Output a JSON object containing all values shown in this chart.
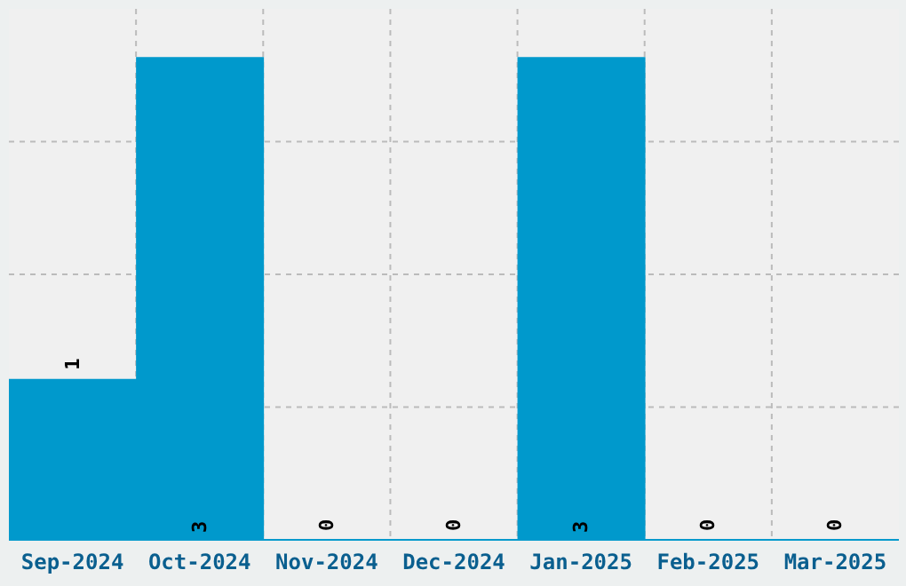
{
  "chart_data": {
    "type": "bar",
    "categories": [
      "Sep-2024",
      "Oct-2024",
      "Nov-2024",
      "Dec-2024",
      "Jan-2025",
      "Feb-2025",
      "Mar-2025"
    ],
    "values": [
      1,
      3,
      0,
      0,
      3,
      0,
      0
    ],
    "color": "#0099cc",
    "ylim": [
      0,
      3.3
    ],
    "grid": true,
    "data_labels": true,
    "tick_labels": "x"
  }
}
